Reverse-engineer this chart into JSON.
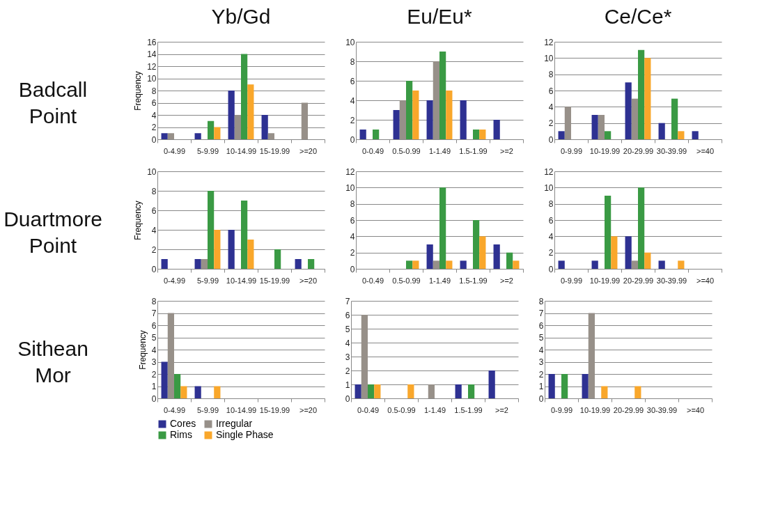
{
  "chart_data": [
    {
      "type": "bar",
      "title": "Yb/Gd",
      "ylabel": "Frequency",
      "annotations": [
        "Badcall Point"
      ],
      "legend": "bottom left",
      "categories": [
        "0-4.99",
        "5-9.99",
        "10-14.99",
        "15-19.99",
        ">=20"
      ],
      "series": [
        {
          "name": "Cores",
          "color": "#2e3192",
          "values": [
            1,
            1,
            8,
            4,
            0
          ]
        },
        {
          "name": "Irregular",
          "color": "#979089",
          "values": [
            1,
            0,
            4,
            1,
            6
          ]
        },
        {
          "name": "Rims",
          "color": "#3a9a44",
          "values": [
            0,
            3,
            14,
            0,
            0
          ]
        },
        {
          "name": "Single Phase",
          "color": "#f9a72b",
          "values": [
            0,
            2,
            9,
            0,
            0
          ]
        }
      ],
      "ylim": [
        0,
        16
      ],
      "yticks": [
        0,
        2,
        4,
        6,
        8,
        10,
        12,
        14,
        16
      ],
      "grid": "y"
    },
    {
      "type": "bar",
      "title": "Eu/Eu*",
      "categories": [
        "0-0.49",
        "0.5-0.99",
        "1-1.49",
        "1.5-1.99",
        ">=2"
      ],
      "series": [
        {
          "color": "#2e3192",
          "values": [
            1,
            3,
            4,
            4,
            2
          ]
        },
        {
          "color": "#979089",
          "values": [
            0,
            4,
            8,
            0,
            0
          ]
        },
        {
          "color": "#3a9a44",
          "values": [
            1,
            6,
            9,
            1,
            0
          ]
        },
        {
          "color": "#f9a72b",
          "values": [
            0,
            5,
            5,
            1,
            0
          ]
        }
      ],
      "ylim": [
        0,
        10
      ],
      "yticks": [
        0,
        2,
        4,
        6,
        8,
        10
      ],
      "grid": "y"
    },
    {
      "type": "bar",
      "title": "Ce/Ce*",
      "categories": [
        "0-9.99",
        "10-19.99",
        "20-29.99",
        "30-39.99",
        ">=40"
      ],
      "series": [
        {
          "color": "#2e3192",
          "values": [
            1,
            3,
            7,
            2,
            1
          ]
        },
        {
          "color": "#979089",
          "values": [
            4,
            3,
            5,
            0,
            0
          ]
        },
        {
          "color": "#3a9a44",
          "values": [
            0,
            1,
            11,
            5,
            0
          ]
        },
        {
          "color": "#f9a72b",
          "values": [
            0,
            0,
            10,
            1,
            0
          ]
        }
      ],
      "ylim": [
        0,
        12
      ],
      "yticks": [
        0,
        2,
        4,
        6,
        8,
        10,
        12
      ],
      "grid": "y"
    },
    {
      "type": "bar",
      "ylabel": "Frequency",
      "annotations": [
        "Duartmore Point"
      ],
      "categories": [
        "0-4.99",
        "5-9.99",
        "10-14.99",
        "15-19.99",
        ">=20"
      ],
      "series": [
        {
          "color": "#2e3192",
          "values": [
            1,
            1,
            4,
            0,
            1
          ]
        },
        {
          "color": "#979089",
          "values": [
            0,
            1,
            0,
            0,
            0
          ]
        },
        {
          "color": "#3a9a44",
          "values": [
            0,
            8,
            7,
            2,
            1
          ]
        },
        {
          "color": "#f9a72b",
          "values": [
            0,
            4,
            3,
            0,
            0
          ]
        }
      ],
      "ylim": [
        0,
        10
      ],
      "yticks": [
        0,
        2,
        4,
        6,
        8,
        10
      ],
      "grid": "y"
    },
    {
      "type": "bar",
      "categories": [
        "0-0.49",
        "0.5-0.99",
        "1-1.49",
        "1.5-1.99",
        ">=2"
      ],
      "series": [
        {
          "color": "#2e3192",
          "values": [
            0,
            0,
            3,
            1,
            3
          ]
        },
        {
          "color": "#979089",
          "values": [
            0,
            0,
            1,
            0,
            0
          ]
        },
        {
          "color": "#3a9a44",
          "values": [
            0,
            1,
            10,
            6,
            2
          ]
        },
        {
          "color": "#f9a72b",
          "values": [
            0,
            1,
            1,
            4,
            1
          ]
        }
      ],
      "ylim": [
        0,
        12
      ],
      "yticks": [
        0,
        2,
        4,
        6,
        8,
        10,
        12
      ],
      "grid": "y"
    },
    {
      "type": "bar",
      "categories": [
        "0-9.99",
        "10-19.99",
        "20-29.99",
        "30-39.99",
        ">=40"
      ],
      "series": [
        {
          "color": "#2e3192",
          "values": [
            1,
            1,
            4,
            1,
            0
          ]
        },
        {
          "color": "#979089",
          "values": [
            0,
            0,
            1,
            0,
            0
          ]
        },
        {
          "color": "#3a9a44",
          "values": [
            0,
            9,
            10,
            0,
            0
          ]
        },
        {
          "color": "#f9a72b",
          "values": [
            0,
            4,
            2,
            1,
            0
          ]
        }
      ],
      "ylim": [
        0,
        12
      ],
      "yticks": [
        0,
        2,
        4,
        6,
        8,
        10,
        12
      ],
      "grid": "y"
    },
    {
      "type": "bar",
      "ylabel": "Frequency",
      "annotations": [
        "Sithean Mor"
      ],
      "categories": [
        "0-4.99",
        "5-9.99",
        "10-14.99",
        "15-19.99",
        ">=20"
      ],
      "series": [
        {
          "color": "#2e3192",
          "values": [
            3,
            1,
            0,
            0,
            0
          ]
        },
        {
          "color": "#979089",
          "values": [
            7,
            0,
            0,
            0,
            0
          ]
        },
        {
          "color": "#3a9a44",
          "values": [
            2,
            0,
            0,
            0,
            0
          ]
        },
        {
          "color": "#f9a72b",
          "values": [
            1,
            1,
            0,
            0,
            0
          ]
        }
      ],
      "ylim": [
        0,
        8
      ],
      "yticks": [
        0,
        1,
        2,
        3,
        4,
        5,
        6,
        7,
        8
      ],
      "grid": "y"
    },
    {
      "type": "bar",
      "categories": [
        "0-0.49",
        "0.5-0.99",
        "1-1.49",
        "1.5-1.99",
        ">=2"
      ],
      "series": [
        {
          "color": "#2e3192",
          "values": [
            1,
            0,
            0,
            1,
            2
          ]
        },
        {
          "color": "#979089",
          "values": [
            6,
            0,
            1,
            0,
            0
          ]
        },
        {
          "color": "#3a9a44",
          "values": [
            1,
            0,
            0,
            1,
            0
          ]
        },
        {
          "color": "#f9a72b",
          "values": [
            1,
            1,
            0,
            0,
            0
          ]
        }
      ],
      "ylim": [
        0,
        7
      ],
      "yticks": [
        0,
        1,
        2,
        3,
        4,
        5,
        6,
        7
      ],
      "grid": "y"
    },
    {
      "type": "bar",
      "categories": [
        "0-9.99",
        "10-19.99",
        "20-29.99",
        "30-39.99",
        ">=40"
      ],
      "series": [
        {
          "color": "#2e3192",
          "values": [
            2,
            2,
            0,
            0,
            0
          ]
        },
        {
          "color": "#979089",
          "values": [
            0,
            7,
            0,
            0,
            0
          ]
        },
        {
          "color": "#3a9a44",
          "values": [
            2,
            0,
            0,
            0,
            0
          ]
        },
        {
          "color": "#f9a72b",
          "values": [
            0,
            1,
            1,
            0,
            0
          ]
        }
      ],
      "ylim": [
        0,
        8
      ],
      "yticks": [
        0,
        1,
        2,
        3,
        4,
        5,
        6,
        7,
        8
      ],
      "grid": "y"
    }
  ]
}
